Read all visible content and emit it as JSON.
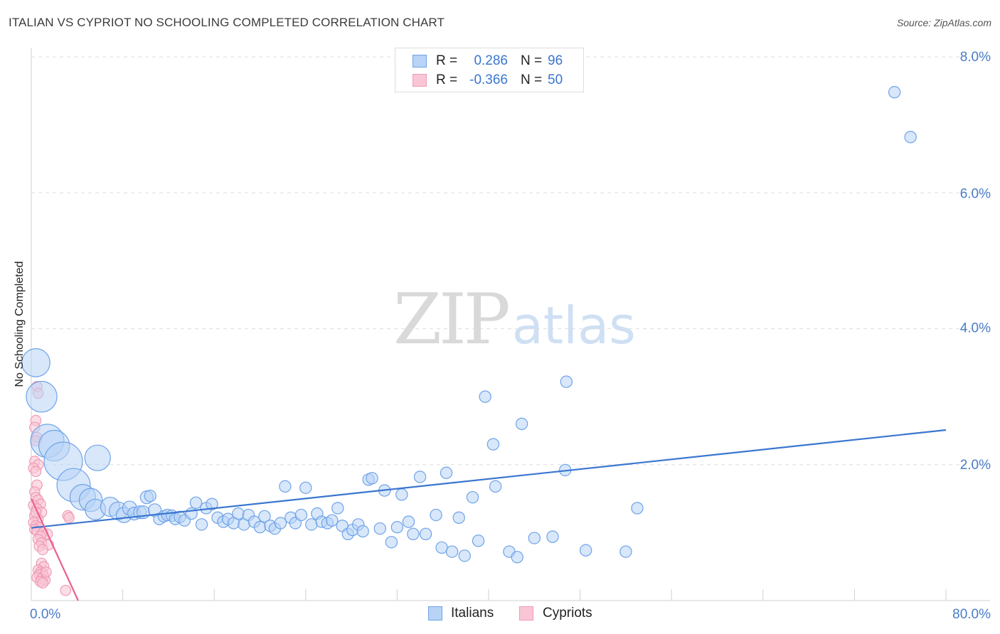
{
  "title": "ITALIAN VS CYPRIOT NO SCHOOLING COMPLETED CORRELATION CHART",
  "source": "Source: ZipAtlas.com",
  "watermark": {
    "zip": "ZIP",
    "atlas": "atlas"
  },
  "stats": [
    {
      "series": "Italians",
      "r_label": "R =",
      "r_value": "0.286",
      "n_label": "N =",
      "n_value": "96",
      "color": "#6fa3e8"
    },
    {
      "series": "Cypriots",
      "r_label": "R =",
      "r_value": "-0.366",
      "n_label": "N =",
      "n_value": "50",
      "color": "#f09ab4"
    }
  ],
  "legend": [
    {
      "label": "Italians",
      "fill": "#b8d3f5",
      "stroke": "#6fa3e8"
    },
    {
      "label": "Cypriots",
      "fill": "#f9c6d6",
      "stroke": "#f09ab4"
    }
  ],
  "chart_data": {
    "type": "scatter",
    "title": "ITALIAN VS CYPRIOT NO SCHOOLING COMPLETED CORRELATION CHART",
    "xlabel": "",
    "ylabel": "No Schooling Completed",
    "xlim": [
      0,
      80
    ],
    "ylim": [
      0,
      8.0
    ],
    "x_tick_labels": [
      "0.0%",
      "80.0%"
    ],
    "y_ticks": [
      2.0,
      4.0,
      6.0,
      8.0
    ],
    "y_tick_labels": [
      "2.0%",
      "4.0%",
      "6.0%",
      "8.0%"
    ],
    "grid": true,
    "series": [
      {
        "name": "Italians",
        "color": "#3a76d0",
        "fill": "#b8d3f5",
        "trend": {
          "x": [
            0,
            80
          ],
          "y": [
            1.07,
            2.51
          ]
        },
        "points": [
          [
            0.4,
            3.5,
            2.2
          ],
          [
            0.9,
            3.0,
            2.4
          ],
          [
            1.4,
            2.35,
            2.6
          ],
          [
            2.0,
            2.28,
            2.4
          ],
          [
            2.8,
            2.05,
            3.0
          ],
          [
            5.8,
            2.1,
            2.0
          ],
          [
            3.7,
            1.7,
            2.6
          ],
          [
            4.5,
            1.52,
            2.0
          ],
          [
            5.2,
            1.48,
            1.8
          ],
          [
            5.6,
            1.34,
            1.6
          ],
          [
            6.9,
            1.38,
            1.5
          ],
          [
            7.6,
            1.32,
            1.4
          ],
          [
            8.1,
            1.26,
            1.2
          ],
          [
            8.6,
            1.36,
            1.1
          ],
          [
            9.0,
            1.28,
            1.0
          ],
          [
            9.5,
            1.3,
            1.0
          ],
          [
            9.8,
            1.3,
            1.0
          ],
          [
            10.1,
            1.52,
            1.0
          ],
          [
            10.4,
            1.54,
            0.9
          ],
          [
            10.8,
            1.33,
            1.0
          ],
          [
            11.2,
            1.2,
            0.9
          ],
          [
            11.6,
            1.24,
            0.9
          ],
          [
            11.9,
            1.26,
            0.9
          ],
          [
            12.3,
            1.25,
            0.9
          ],
          [
            12.6,
            1.2,
            0.9
          ],
          [
            13.0,
            1.23,
            0.9
          ],
          [
            13.4,
            1.18,
            0.9
          ],
          [
            14.0,
            1.28,
            0.9
          ],
          [
            14.4,
            1.44,
            0.9
          ],
          [
            14.9,
            1.12,
            0.9
          ],
          [
            15.3,
            1.36,
            0.9
          ],
          [
            15.8,
            1.42,
            0.9
          ],
          [
            16.3,
            1.22,
            0.9
          ],
          [
            16.8,
            1.16,
            0.9
          ],
          [
            17.2,
            1.2,
            0.9
          ],
          [
            17.7,
            1.14,
            0.9
          ],
          [
            18.1,
            1.28,
            0.9
          ],
          [
            18.6,
            1.12,
            0.9
          ],
          [
            19.0,
            1.26,
            0.9
          ],
          [
            19.5,
            1.16,
            0.9
          ],
          [
            20.0,
            1.08,
            0.9
          ],
          [
            20.4,
            1.24,
            0.9
          ],
          [
            20.9,
            1.1,
            0.9
          ],
          [
            21.3,
            1.06,
            0.9
          ],
          [
            21.8,
            1.14,
            0.9
          ],
          [
            22.2,
            1.68,
            0.9
          ],
          [
            22.7,
            1.22,
            0.9
          ],
          [
            23.1,
            1.14,
            0.9
          ],
          [
            23.6,
            1.26,
            0.9
          ],
          [
            24.0,
            1.66,
            0.9
          ],
          [
            24.5,
            1.12,
            0.9
          ],
          [
            25.0,
            1.28,
            0.9
          ],
          [
            25.4,
            1.16,
            0.9
          ],
          [
            25.9,
            1.14,
            0.9
          ],
          [
            26.3,
            1.18,
            0.9
          ],
          [
            26.8,
            1.36,
            0.9
          ],
          [
            27.2,
            1.1,
            0.9
          ],
          [
            27.7,
            0.98,
            0.9
          ],
          [
            28.1,
            1.04,
            0.9
          ],
          [
            28.6,
            1.12,
            0.9
          ],
          [
            29.0,
            1.02,
            0.9
          ],
          [
            29.5,
            1.78,
            0.9
          ],
          [
            29.8,
            1.8,
            0.9
          ],
          [
            30.5,
            1.06,
            0.9
          ],
          [
            30.9,
            1.62,
            0.9
          ],
          [
            31.5,
            0.86,
            0.9
          ],
          [
            32.0,
            1.08,
            0.9
          ],
          [
            32.4,
            1.56,
            0.9
          ],
          [
            33.0,
            1.16,
            0.9
          ],
          [
            33.4,
            0.98,
            0.9
          ],
          [
            34.0,
            1.82,
            0.9
          ],
          [
            34.5,
            0.98,
            0.9
          ],
          [
            35.4,
            1.26,
            0.9
          ],
          [
            35.9,
            0.78,
            0.9
          ],
          [
            36.3,
            1.88,
            0.9
          ],
          [
            36.8,
            0.72,
            0.9
          ],
          [
            37.4,
            1.22,
            0.9
          ],
          [
            37.9,
            0.66,
            0.9
          ],
          [
            38.6,
            1.52,
            0.9
          ],
          [
            39.1,
            0.88,
            0.9
          ],
          [
            39.7,
            3.0,
            0.9
          ],
          [
            40.4,
            2.3,
            0.9
          ],
          [
            40.6,
            1.68,
            0.9
          ],
          [
            41.8,
            0.72,
            0.9
          ],
          [
            42.5,
            0.64,
            0.9
          ],
          [
            42.9,
            2.6,
            0.9
          ],
          [
            44.0,
            0.92,
            0.9
          ],
          [
            45.6,
            0.94,
            0.9
          ],
          [
            46.7,
            1.92,
            0.9
          ],
          [
            46.8,
            3.22,
            0.9
          ],
          [
            48.5,
            0.74,
            0.9
          ],
          [
            52.0,
            0.72,
            0.9
          ],
          [
            53.0,
            1.36,
            0.9
          ],
          [
            75.5,
            7.48,
            0.9
          ],
          [
            76.9,
            6.82,
            0.9
          ]
        ]
      },
      {
        "name": "Cypriots",
        "color": "#e8628c",
        "fill": "#f9c6d6",
        "trend": {
          "x": [
            0,
            4.1
          ],
          "y": [
            1.5,
            0.0
          ]
        },
        "points": [
          [
            0.5,
            3.15,
            0.8
          ],
          [
            0.6,
            3.05,
            0.8
          ],
          [
            0.4,
            2.65,
            0.8
          ],
          [
            0.3,
            2.55,
            0.8
          ],
          [
            0.5,
            2.4,
            0.8
          ],
          [
            0.4,
            2.35,
            0.8
          ],
          [
            0.3,
            2.05,
            0.8
          ],
          [
            0.6,
            2.0,
            0.8
          ],
          [
            0.2,
            1.95,
            0.8
          ],
          [
            0.4,
            1.9,
            0.8
          ],
          [
            0.5,
            1.7,
            0.8
          ],
          [
            0.3,
            1.6,
            0.8
          ],
          [
            0.4,
            1.52,
            0.8
          ],
          [
            0.6,
            1.48,
            0.8
          ],
          [
            0.8,
            1.42,
            0.8
          ],
          [
            0.2,
            1.4,
            0.8
          ],
          [
            0.5,
            1.35,
            0.8
          ],
          [
            0.9,
            1.3,
            0.8
          ],
          [
            0.3,
            1.25,
            0.8
          ],
          [
            0.6,
            1.2,
            0.8
          ],
          [
            0.2,
            1.15,
            0.8
          ],
          [
            0.4,
            1.1,
            0.8
          ],
          [
            0.7,
            1.08,
            0.8
          ],
          [
            0.3,
            1.05,
            0.8
          ],
          [
            0.5,
            1.02,
            0.8
          ],
          [
            1.0,
            1.0,
            0.8
          ],
          [
            1.4,
            0.98,
            0.8
          ],
          [
            0.8,
            0.95,
            0.8
          ],
          [
            0.6,
            0.9,
            0.8
          ],
          [
            0.9,
            0.85,
            0.8
          ],
          [
            1.5,
            0.82,
            0.8
          ],
          [
            0.7,
            0.8,
            0.8
          ],
          [
            1.0,
            0.75,
            0.8
          ],
          [
            3.2,
            1.25,
            0.8
          ],
          [
            3.3,
            1.22,
            0.8
          ],
          [
            0.9,
            0.55,
            0.8
          ],
          [
            1.1,
            0.5,
            0.8
          ],
          [
            0.6,
            0.45,
            0.8
          ],
          [
            0.8,
            0.42,
            0.8
          ],
          [
            1.0,
            0.4,
            0.8
          ],
          [
            0.7,
            0.38,
            0.8
          ],
          [
            1.1,
            0.36,
            0.8
          ],
          [
            0.5,
            0.34,
            0.8
          ],
          [
            0.9,
            0.32,
            0.8
          ],
          [
            1.2,
            0.3,
            0.8
          ],
          [
            0.8,
            0.28,
            0.8
          ],
          [
            1.0,
            0.26,
            0.8
          ],
          [
            1.3,
            0.42,
            0.8
          ],
          [
            3.0,
            0.15,
            0.8
          ],
          [
            0.4,
            1.3,
            0.8
          ]
        ]
      }
    ]
  }
}
